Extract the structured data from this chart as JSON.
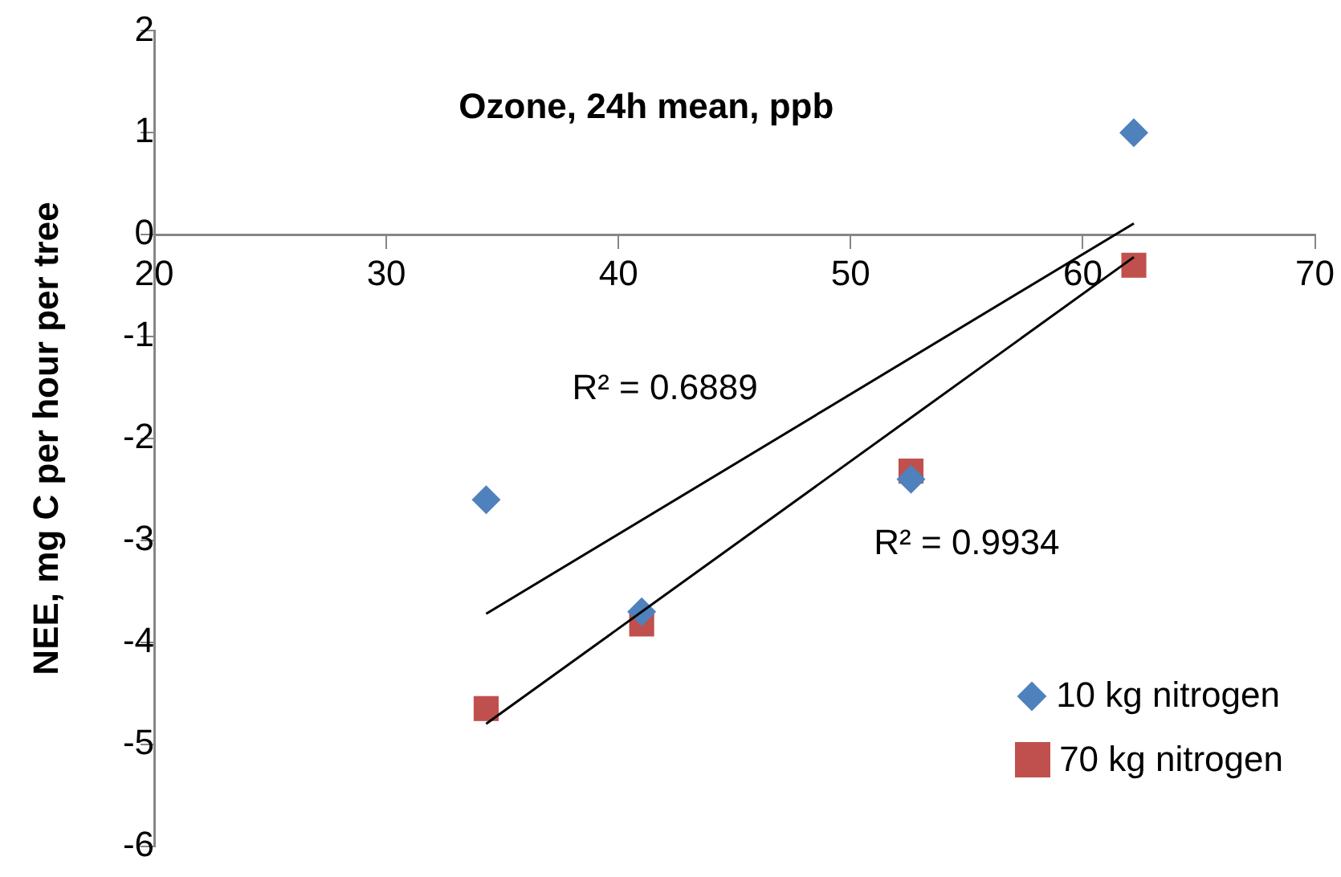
{
  "chart_data": {
    "type": "scatter",
    "xlabel": "Ozone, 24h mean, ppb",
    "ylabel": "NEE, mg C per hour per tree",
    "xlim": [
      20,
      70
    ],
    "xticks": [
      20,
      30,
      40,
      50,
      60,
      70
    ],
    "ylim": [
      -6,
      2
    ],
    "yticks": [
      -6,
      -5,
      -4,
      -3,
      -2,
      -1,
      0,
      1,
      2
    ],
    "grid": false,
    "legend": "bottom right",
    "series": [
      {
        "name": "10 kg nitrogen",
        "color": "#4f81bd",
        "marker": "diamond",
        "x": [
          34.3,
          41.0,
          52.6,
          62.2
        ],
        "values": [
          -2.6,
          -3.7,
          -2.4,
          1.0
        ]
      },
      {
        "name": "70 kg nitrogen",
        "color": "#c0504d",
        "marker": "square",
        "x": [
          34.3,
          41.0,
          52.6,
          62.2
        ],
        "values": [
          -4.65,
          -3.82,
          -2.32,
          -0.3
        ]
      },
      {
        "type": "line",
        "color": "#000000",
        "marker": "none",
        "x": [
          34.3,
          62.2
        ],
        "values": [
          -3.72,
          0.11
        ]
      },
      {
        "type": "line",
        "color": "#000000",
        "marker": "none",
        "x": [
          34.3,
          62.2
        ],
        "values": [
          -4.8,
          -0.22
        ]
      }
    ],
    "annotations": [
      "R² = 0.6889",
      "R² = 0.9934"
    ]
  }
}
